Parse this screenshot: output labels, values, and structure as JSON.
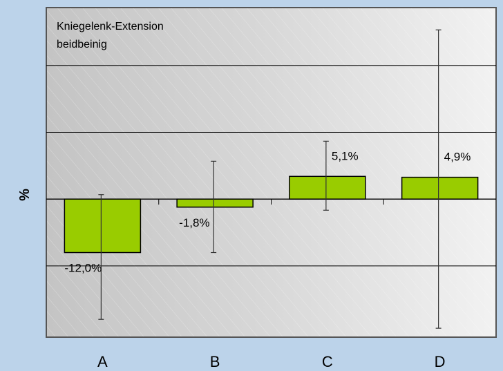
{
  "chart_data": {
    "type": "bar",
    "title": "Kniegelenk-Extension",
    "subtitle": "beidbeinig",
    "ylabel": "%",
    "xlabel": "",
    "categories": [
      "A",
      "B",
      "C",
      "D"
    ],
    "values": [
      -12.0,
      -1.8,
      5.1,
      4.9
    ],
    "value_labels": [
      "-12,0%",
      "-1,8%",
      "5,1%",
      "4,9%"
    ],
    "error_low": [
      -27.0,
      -12.0,
      -2.5,
      -29.0
    ],
    "error_high": [
      1.0,
      8.5,
      13.0,
      38.0
    ],
    "ylim": [
      -31,
      43
    ],
    "gridlines": [
      -15,
      0,
      15,
      30
    ],
    "grid": true,
    "colors": {
      "bar_fill": "#99cc00",
      "bar_stroke": "#000000",
      "background": "#bcd3ea",
      "plot_band_light": "#f0f0f0",
      "plot_band_dark": "#c6c6c6"
    }
  }
}
